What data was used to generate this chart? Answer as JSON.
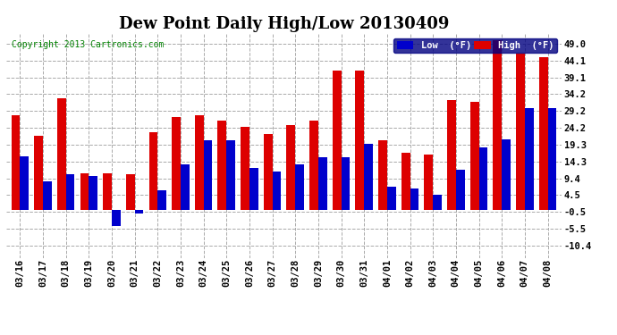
{
  "title": "Dew Point Daily High/Low 20130409",
  "copyright": "Copyright 2013 Cartronics.com",
  "background_color": "#ffffff",
  "plot_bg_color": "#ffffff",
  "grid_color": "#aaaaaa",
  "dates": [
    "03/16",
    "03/17",
    "03/18",
    "03/19",
    "03/20",
    "03/21",
    "03/22",
    "03/23",
    "03/24",
    "03/25",
    "03/26",
    "03/27",
    "03/28",
    "03/29",
    "03/30",
    "03/31",
    "04/01",
    "04/02",
    "04/03",
    "04/04",
    "04/05",
    "04/06",
    "04/07",
    "04/08"
  ],
  "high": [
    28.0,
    22.0,
    33.0,
    11.0,
    11.0,
    10.5,
    23.0,
    27.5,
    28.0,
    26.5,
    24.5,
    22.5,
    25.0,
    26.5,
    41.0,
    41.0,
    20.5,
    17.0,
    16.5,
    32.5,
    32.0,
    50.0,
    46.0,
    45.0
  ],
  "low": [
    16.0,
    8.5,
    10.5,
    10.0,
    -4.5,
    -1.0,
    6.0,
    13.5,
    20.5,
    20.5,
    12.5,
    11.5,
    13.5,
    15.5,
    15.5,
    19.5,
    7.0,
    6.5,
    4.5,
    12.0,
    18.5,
    21.0,
    30.0,
    30.0
  ],
  "yticks": [
    -10.4,
    -5.5,
    -0.5,
    4.5,
    9.4,
    14.3,
    19.3,
    24.2,
    29.2,
    34.2,
    39.1,
    44.1,
    49.0
  ],
  "ylim": [
    -14.0,
    52.0
  ],
  "bar_width": 0.38,
  "low_color": "#0000cc",
  "high_color": "#dd0000",
  "title_fontsize": 13,
  "tick_fontsize": 7.5,
  "copyright_color": "#008000",
  "legend_bg": "#000080",
  "legend_text_color": "#ffffff"
}
